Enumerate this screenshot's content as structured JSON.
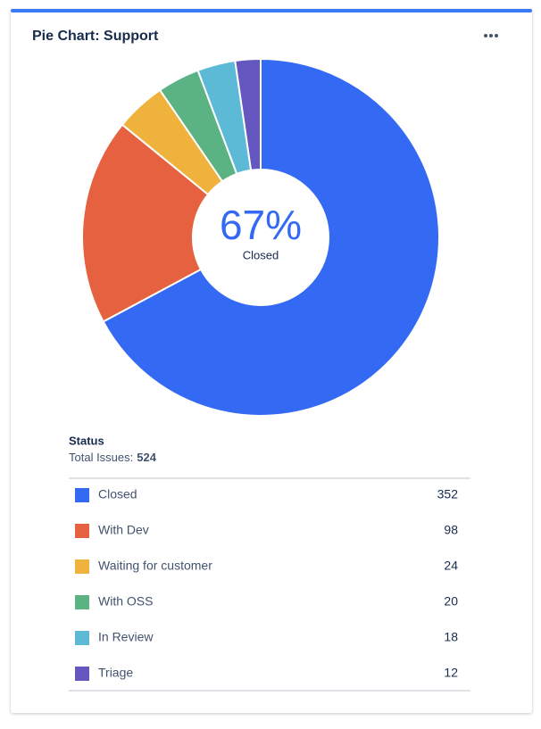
{
  "chart_data": {
    "type": "pie",
    "title": "Pie Chart: Support",
    "categories": [
      "Closed",
      "With Dev",
      "Waiting for customer",
      "With OSS",
      "In Review",
      "Triage"
    ],
    "values": [
      352,
      98,
      24,
      20,
      18,
      12
    ],
    "colors": [
      "#3469f4",
      "#e5613f",
      "#efb33d",
      "#5bb283",
      "#5cbad7",
      "#6457c0"
    ],
    "donut": true,
    "center": {
      "value": 67,
      "label": "67%",
      "text": "Closed"
    },
    "legend_title": "Status",
    "total_label": "Total Issues:",
    "total": 524
  }
}
